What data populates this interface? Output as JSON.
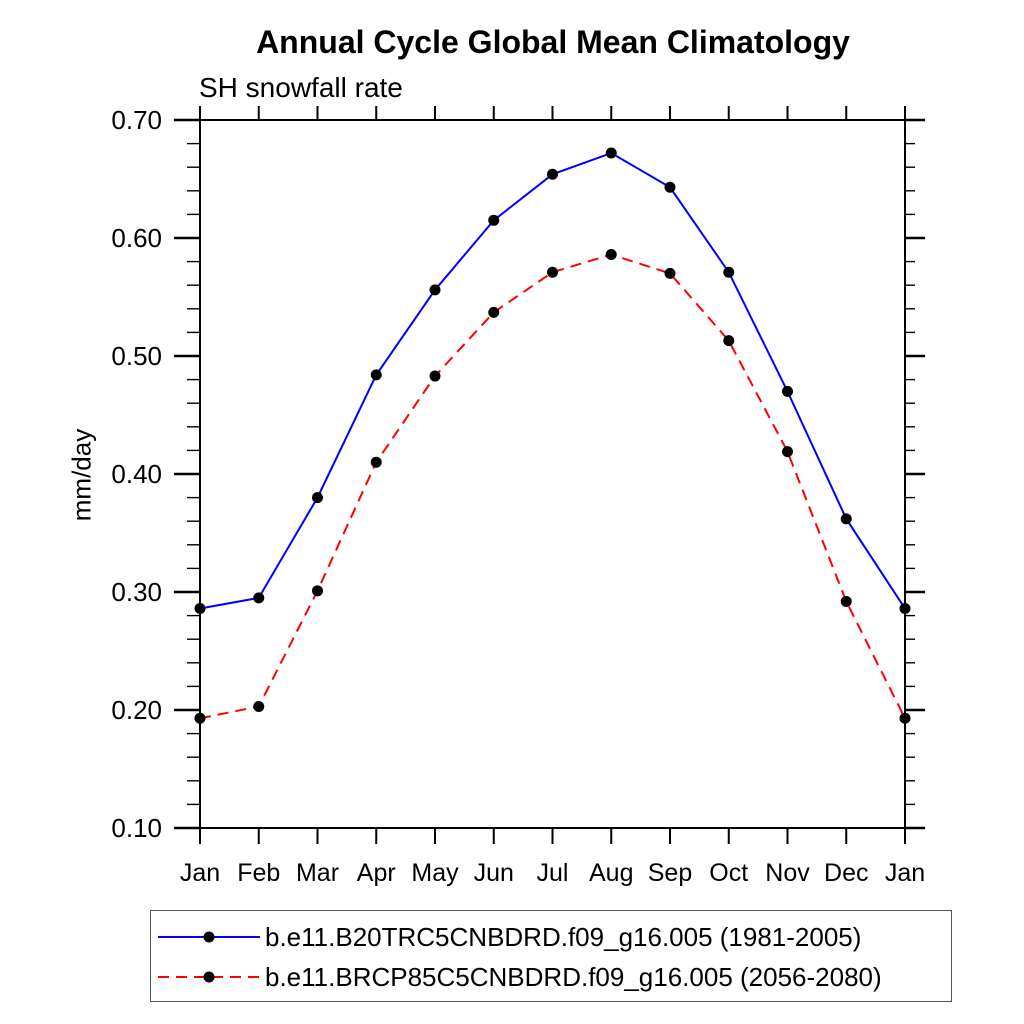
{
  "page": {
    "background_color": "#ffffff",
    "text_color": "#000000"
  },
  "chart_data": {
    "type": "line",
    "title": "Annual Cycle Global Mean Climatology",
    "subtitle": "SH snowfall rate",
    "ylabel": "mm/day",
    "categories": [
      "Jan",
      "Feb",
      "Mar",
      "Apr",
      "May",
      "Jun",
      "Jul",
      "Aug",
      "Sep",
      "Oct",
      "Nov",
      "Dec",
      "Jan"
    ],
    "ylim": [
      0.1,
      0.7
    ],
    "y_major_step": 0.1,
    "y_minor_step": 0.02,
    "grid": false,
    "legend_position": "bottom",
    "marker": "filled-circle",
    "marker_color": "#000000",
    "series": [
      {
        "name": "b.e11.B20TRC5CNBDRD.f09_g16.005 (1981-2005)",
        "color": "#0000ff",
        "line_style": "solid",
        "values": [
          0.286,
          0.295,
          0.38,
          0.484,
          0.556,
          0.615,
          0.654,
          0.672,
          0.643,
          0.571,
          0.47,
          0.362,
          0.286
        ]
      },
      {
        "name": "b.e11.BRCP85C5CNBDRD.f09_g16.005 (2056-2080)",
        "color": "#ff0000",
        "line_style": "dashed",
        "values": [
          0.193,
          0.203,
          0.301,
          0.41,
          0.483,
          0.537,
          0.571,
          0.586,
          0.57,
          0.513,
          0.419,
          0.292,
          0.193
        ]
      }
    ]
  }
}
